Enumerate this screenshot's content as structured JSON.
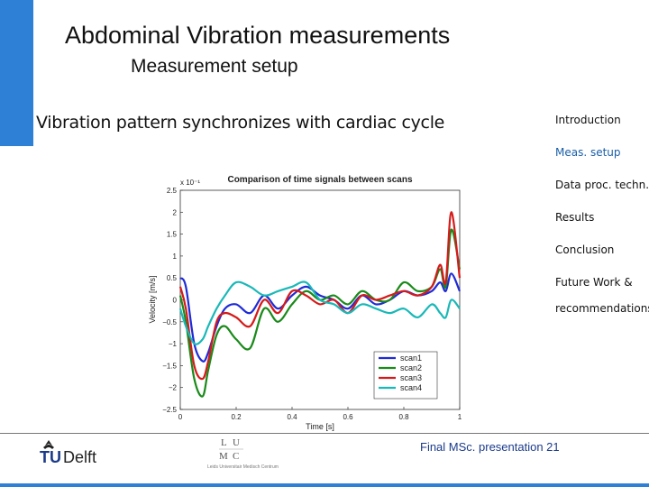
{
  "slide": {
    "title": "Abdominal Vibration measurements",
    "subtitle": "Measurement setup",
    "bullet": "Vibration pattern synchronizes with cardiac cycle",
    "accent_color": "#2e7fd6"
  },
  "nav": {
    "items": [
      {
        "label": "Introduction",
        "active": false
      },
      {
        "label": "Meas. setup",
        "active": true
      },
      {
        "label": "Data proc. techn.",
        "active": false
      },
      {
        "label": "Results",
        "active": false
      },
      {
        "label": "Conclusion",
        "active": false
      },
      {
        "label": "Future Work &",
        "active": false
      },
      {
        "label": "recommendations",
        "active": false
      }
    ],
    "active_color": "#1a5ea8"
  },
  "footer": {
    "text": "Final MSc. presentation  21",
    "logo_tudelft": "TUDelft",
    "logo_lumc": "LUMC",
    "logo_lumc_caption": "Leids Universitair Medisch Centrum"
  },
  "chart_data": {
    "type": "line",
    "title": "Comparison of time signals between scans",
    "xlabel": "Time [s]",
    "ylabel": "Velocity [m/s]",
    "exponent": "x 10⁻¹",
    "xlim": [
      0,
      1
    ],
    "ylim": [
      -2.5,
      2.5
    ],
    "xticks": [
      "0",
      "0.2",
      "0.4",
      "0.6",
      "0.8",
      "1"
    ],
    "yticks": [
      "2.5",
      "2",
      "1.5",
      "1",
      "0.5",
      "0",
      "−0.5",
      "−1",
      "−1.5",
      "−2",
      "−2.5"
    ],
    "grid": false,
    "legend_position": "bottom-right",
    "series": [
      {
        "name": "scan1",
        "color": "#1f2bd6",
        "x": [
          0,
          0.02,
          0.05,
          0.08,
          0.1,
          0.13,
          0.16,
          0.2,
          0.25,
          0.3,
          0.35,
          0.4,
          0.45,
          0.5,
          0.55,
          0.6,
          0.65,
          0.7,
          0.75,
          0.8,
          0.85,
          0.9,
          0.93,
          0.95,
          0.97,
          1.0
        ],
        "y": [
          0.5,
          0.3,
          -1.0,
          -1.4,
          -1.2,
          -0.6,
          -0.2,
          -0.1,
          -0.3,
          0.1,
          -0.2,
          0.1,
          0.3,
          0.1,
          0.0,
          -0.2,
          0.1,
          -0.1,
          0.0,
          0.2,
          0.1,
          0.2,
          0.4,
          0.2,
          0.6,
          0.2
        ]
      },
      {
        "name": "scan2",
        "color": "#1a8a1a",
        "x": [
          0,
          0.02,
          0.05,
          0.08,
          0.1,
          0.13,
          0.16,
          0.2,
          0.25,
          0.3,
          0.35,
          0.4,
          0.45,
          0.5,
          0.55,
          0.6,
          0.65,
          0.7,
          0.75,
          0.8,
          0.85,
          0.9,
          0.93,
          0.95,
          0.97,
          1.0
        ],
        "y": [
          0.1,
          -0.5,
          -1.8,
          -2.2,
          -1.6,
          -0.8,
          -0.6,
          -0.9,
          -1.1,
          -0.2,
          -0.5,
          -0.1,
          0.2,
          0.0,
          0.1,
          -0.1,
          0.2,
          0.0,
          0.0,
          0.4,
          0.2,
          0.3,
          0.7,
          0.3,
          1.6,
          0.7
        ]
      },
      {
        "name": "scan3",
        "color": "#d61a1a",
        "x": [
          0,
          0.02,
          0.05,
          0.08,
          0.1,
          0.13,
          0.16,
          0.2,
          0.25,
          0.3,
          0.35,
          0.4,
          0.45,
          0.5,
          0.55,
          0.6,
          0.65,
          0.7,
          0.75,
          0.8,
          0.85,
          0.9,
          0.93,
          0.95,
          0.97,
          1.0
        ],
        "y": [
          0.3,
          -0.2,
          -1.5,
          -1.8,
          -1.4,
          -0.5,
          -0.3,
          -0.4,
          -0.6,
          0.0,
          -0.3,
          0.2,
          0.1,
          -0.1,
          0.0,
          -0.3,
          0.1,
          0.0,
          0.1,
          0.2,
          0.1,
          0.3,
          0.8,
          0.4,
          2.0,
          0.5
        ]
      },
      {
        "name": "scan4",
        "color": "#1ab8b8",
        "x": [
          0,
          0.02,
          0.05,
          0.08,
          0.1,
          0.13,
          0.16,
          0.2,
          0.25,
          0.3,
          0.35,
          0.4,
          0.45,
          0.5,
          0.55,
          0.6,
          0.65,
          0.7,
          0.75,
          0.8,
          0.85,
          0.9,
          0.93,
          0.95,
          0.97,
          1.0
        ],
        "y": [
          -0.2,
          -0.6,
          -1.0,
          -0.9,
          -0.6,
          -0.2,
          0.1,
          0.4,
          0.3,
          0.1,
          0.2,
          0.3,
          0.4,
          0.0,
          -0.1,
          -0.3,
          -0.1,
          -0.2,
          -0.3,
          -0.2,
          -0.4,
          -0.1,
          -0.3,
          -0.4,
          0.0,
          -0.2
        ]
      }
    ]
  }
}
